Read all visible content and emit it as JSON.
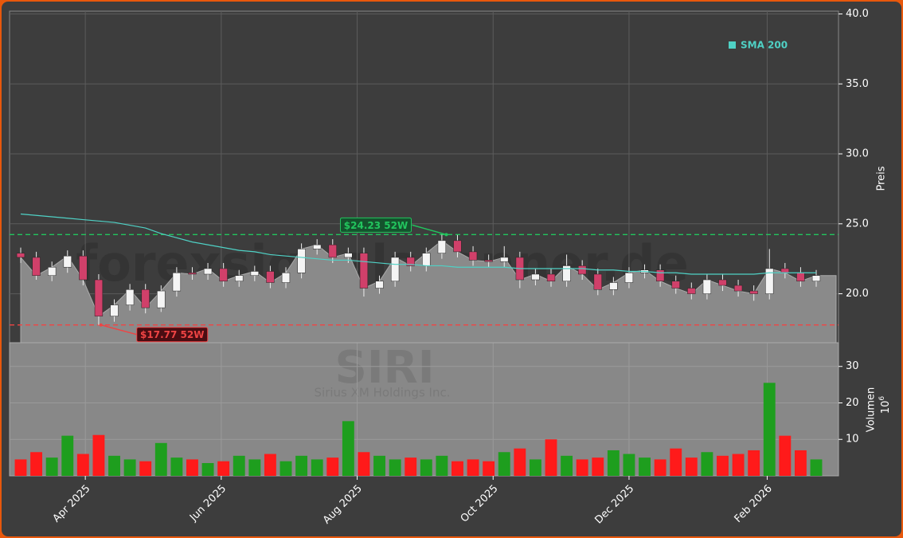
{
  "chart_data": {
    "type": "candlestick",
    "ylabel": "Preis",
    "y2label": "Volumen",
    "y2unit": "10",
    "y2unit_exp": "6",
    "watermark": {
      "site": "forexsignalscanner.de",
      "ticker": "SIRI",
      "company": "Sirius XM Holdings Inc."
    },
    "x": [
      "2025-03-03",
      "2025-03-10",
      "2025-03-17",
      "2025-03-24",
      "2025-03-31",
      "2025-04-07",
      "2025-04-14",
      "2025-04-21",
      "2025-04-28",
      "2025-05-05",
      "2025-05-12",
      "2025-05-19",
      "2025-05-26",
      "2025-06-02",
      "2025-06-09",
      "2025-06-16",
      "2025-06-23",
      "2025-06-30",
      "2025-07-07",
      "2025-07-14",
      "2025-07-21",
      "2025-07-28",
      "2025-08-04",
      "2025-08-11",
      "2025-08-18",
      "2025-08-25",
      "2025-09-01",
      "2025-09-08",
      "2025-09-15",
      "2025-09-22",
      "2025-09-29",
      "2025-10-06",
      "2025-10-13",
      "2025-10-20",
      "2025-10-27",
      "2025-11-03",
      "2025-11-10",
      "2025-11-17",
      "2025-11-24",
      "2025-12-01",
      "2025-12-08",
      "2025-12-15",
      "2025-12-22",
      "2025-12-29",
      "2026-01-05",
      "2026-01-12",
      "2026-01-19",
      "2026-01-26",
      "2026-02-02",
      "2026-02-09",
      "2026-02-16",
      "2026-02-23"
    ],
    "open": [
      22.9,
      22.6,
      21.3,
      21.9,
      22.7,
      21.0,
      18.4,
      19.2,
      20.3,
      19.0,
      20.2,
      21.5,
      21.4,
      21.8,
      20.9,
      21.3,
      21.6,
      20.8,
      21.5,
      23.2,
      23.5,
      22.6,
      22.9,
      20.4,
      20.9,
      22.6,
      22.0,
      22.9,
      23.8,
      23.0,
      22.4,
      22.3,
      22.6,
      21.0,
      21.4,
      20.9,
      22.0,
      21.4,
      20.3,
      20.8,
      21.5,
      21.7,
      20.9,
      20.4,
      20.0,
      21.0,
      20.6,
      20.2,
      20.0,
      21.8,
      21.5,
      20.9
    ],
    "high": [
      23.3,
      23.0,
      22.3,
      23.1,
      23.1,
      21.4,
      19.6,
      20.7,
      20.7,
      20.6,
      21.9,
      21.9,
      22.2,
      22.2,
      21.7,
      22.0,
      22.0,
      21.9,
      23.6,
      23.9,
      23.9,
      23.3,
      23.3,
      21.3,
      23.0,
      23.0,
      23.3,
      24.23,
      24.2,
      23.4,
      22.8,
      23.4,
      23.0,
      21.8,
      21.8,
      22.8,
      22.4,
      21.8,
      21.2,
      21.9,
      22.1,
      22.1,
      21.3,
      20.8,
      21.4,
      21.4,
      21.0,
      20.6,
      23.2,
      22.2,
      21.9,
      21.7
    ],
    "low": [
      22.2,
      21.0,
      20.9,
      21.5,
      20.6,
      17.77,
      18.0,
      18.8,
      18.6,
      18.7,
      19.8,
      21.0,
      21.0,
      20.5,
      20.5,
      20.9,
      20.4,
      20.4,
      21.1,
      22.8,
      22.2,
      22.2,
      19.8,
      20.0,
      20.5,
      21.6,
      21.6,
      22.5,
      22.6,
      22.0,
      21.9,
      21.9,
      20.4,
      20.6,
      20.5,
      20.5,
      21.0,
      19.9,
      19.9,
      20.4,
      21.1,
      20.5,
      20.0,
      19.6,
      19.6,
      20.2,
      19.8,
      19.5,
      19.6,
      21.1,
      20.5,
      20.5
    ],
    "close": [
      22.6,
      21.3,
      21.9,
      22.7,
      21.0,
      18.4,
      19.2,
      20.3,
      19.0,
      20.2,
      21.5,
      21.4,
      21.8,
      20.9,
      21.3,
      21.6,
      20.8,
      21.5,
      23.2,
      23.5,
      22.6,
      22.9,
      20.4,
      20.9,
      22.6,
      22.0,
      22.9,
      23.8,
      23.0,
      22.4,
      22.3,
      22.6,
      21.0,
      21.4,
      20.9,
      22.0,
      21.4,
      20.3,
      20.8,
      21.5,
      21.7,
      20.9,
      20.4,
      20.0,
      21.0,
      20.6,
      20.2,
      20.0,
      21.8,
      21.5,
      20.9,
      21.3
    ],
    "volume": [
      4.5,
      6.5,
      5.0,
      11.0,
      6.0,
      11.2,
      5.5,
      4.5,
      4.0,
      9.0,
      5.0,
      4.5,
      3.5,
      4.0,
      5.5,
      4.5,
      6.0,
      4.0,
      5.5,
      4.5,
      5.0,
      15.0,
      6.5,
      5.5,
      4.5,
      5.0,
      4.5,
      5.5,
      4.0,
      4.5,
      4.0,
      6.5,
      7.5,
      4.5,
      10.0,
      5.5,
      4.5,
      5.0,
      7.0,
      6.0,
      5.0,
      4.5,
      7.5,
      5.0,
      6.5,
      5.5,
      6.0,
      7.0,
      25.5,
      11.0,
      7.0,
      4.5
    ],
    "sma": {
      "name": "SMA 200",
      "color": "#4fd1c5",
      "values": [
        25.7,
        25.6,
        25.5,
        25.4,
        25.3,
        25.2,
        25.1,
        24.9,
        24.7,
        24.3,
        24.0,
        23.7,
        23.5,
        23.3,
        23.1,
        23.0,
        22.8,
        22.7,
        22.6,
        22.5,
        22.4,
        22.4,
        22.3,
        22.2,
        22.1,
        22.1,
        22.0,
        22.0,
        21.9,
        21.9,
        21.9,
        21.9,
        21.8,
        21.8,
        21.8,
        21.8,
        21.8,
        21.7,
        21.7,
        21.6,
        21.6,
        21.5,
        21.5,
        21.4,
        21.4,
        21.4,
        21.4,
        21.4,
        21.5,
        21.5,
        21.5,
        21.5
      ]
    },
    "up_color": "#f4f4f4",
    "down_color": "#d0406a",
    "volume_up_color": "#1e9e1e",
    "volume_down_color": "#ff1a1a",
    "annotations": [
      {
        "value": 24.23,
        "label": "$24.23 52W",
        "x": "2025-09-10",
        "color": "#22c55e"
      },
      {
        "value": 17.77,
        "label": "$17.77 52W",
        "x": "2025-04-08",
        "color": "#ef4444"
      }
    ],
    "xlim": [
      "2025-02-26",
      "2026-03-05"
    ],
    "xticks": [
      {
        "value": "2025-04-01",
        "label": "Apr 2025"
      },
      {
        "value": "2025-06-01",
        "label": "Jun 2025"
      },
      {
        "value": "2025-08-01",
        "label": "Aug 2025"
      },
      {
        "value": "2025-10-01",
        "label": "Oct 2025"
      },
      {
        "value": "2025-12-01",
        "label": "Dec 2025"
      },
      {
        "value": "2026-02-01",
        "label": "Feb 2026"
      }
    ],
    "ylim": [
      16.5,
      40.2
    ],
    "yticks": [
      {
        "value": 20,
        "label": "20.0"
      },
      {
        "value": 25,
        "label": "25.0"
      },
      {
        "value": 30,
        "label": "30.0"
      },
      {
        "value": 35,
        "label": "35.0"
      },
      {
        "value": 40,
        "label": "40.0"
      }
    ],
    "y2lim": [
      0,
      36.5
    ],
    "y2ticks": [
      10,
      20,
      30
    ],
    "grid": true
  }
}
